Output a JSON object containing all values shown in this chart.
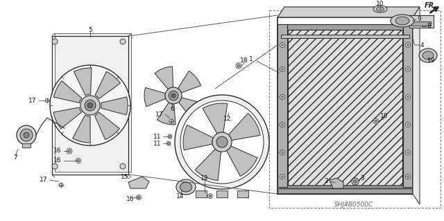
{
  "background_color": "#ffffff",
  "line_color": "#2a2a2a",
  "gray_fill": "#d8d8d8",
  "dark_gray": "#888888",
  "mid_gray": "#aaaaaa",
  "light_gray": "#cccccc",
  "part_number_text": "SHJ4B0500C",
  "fr_arrow_text": "FR.",
  "fig_width": 6.4,
  "fig_height": 3.19,
  "dpi": 100,
  "perspective_lines": [
    [
      [
        186,
        55
      ],
      [
        390,
        22
      ]
    ],
    [
      [
        186,
        248
      ],
      [
        390,
        285
      ]
    ]
  ],
  "perspective_lines2": [
    [
      [
        310,
        130
      ],
      [
        390,
        75
      ]
    ],
    [
      [
        388,
        278
      ],
      [
        390,
        285
      ]
    ]
  ]
}
